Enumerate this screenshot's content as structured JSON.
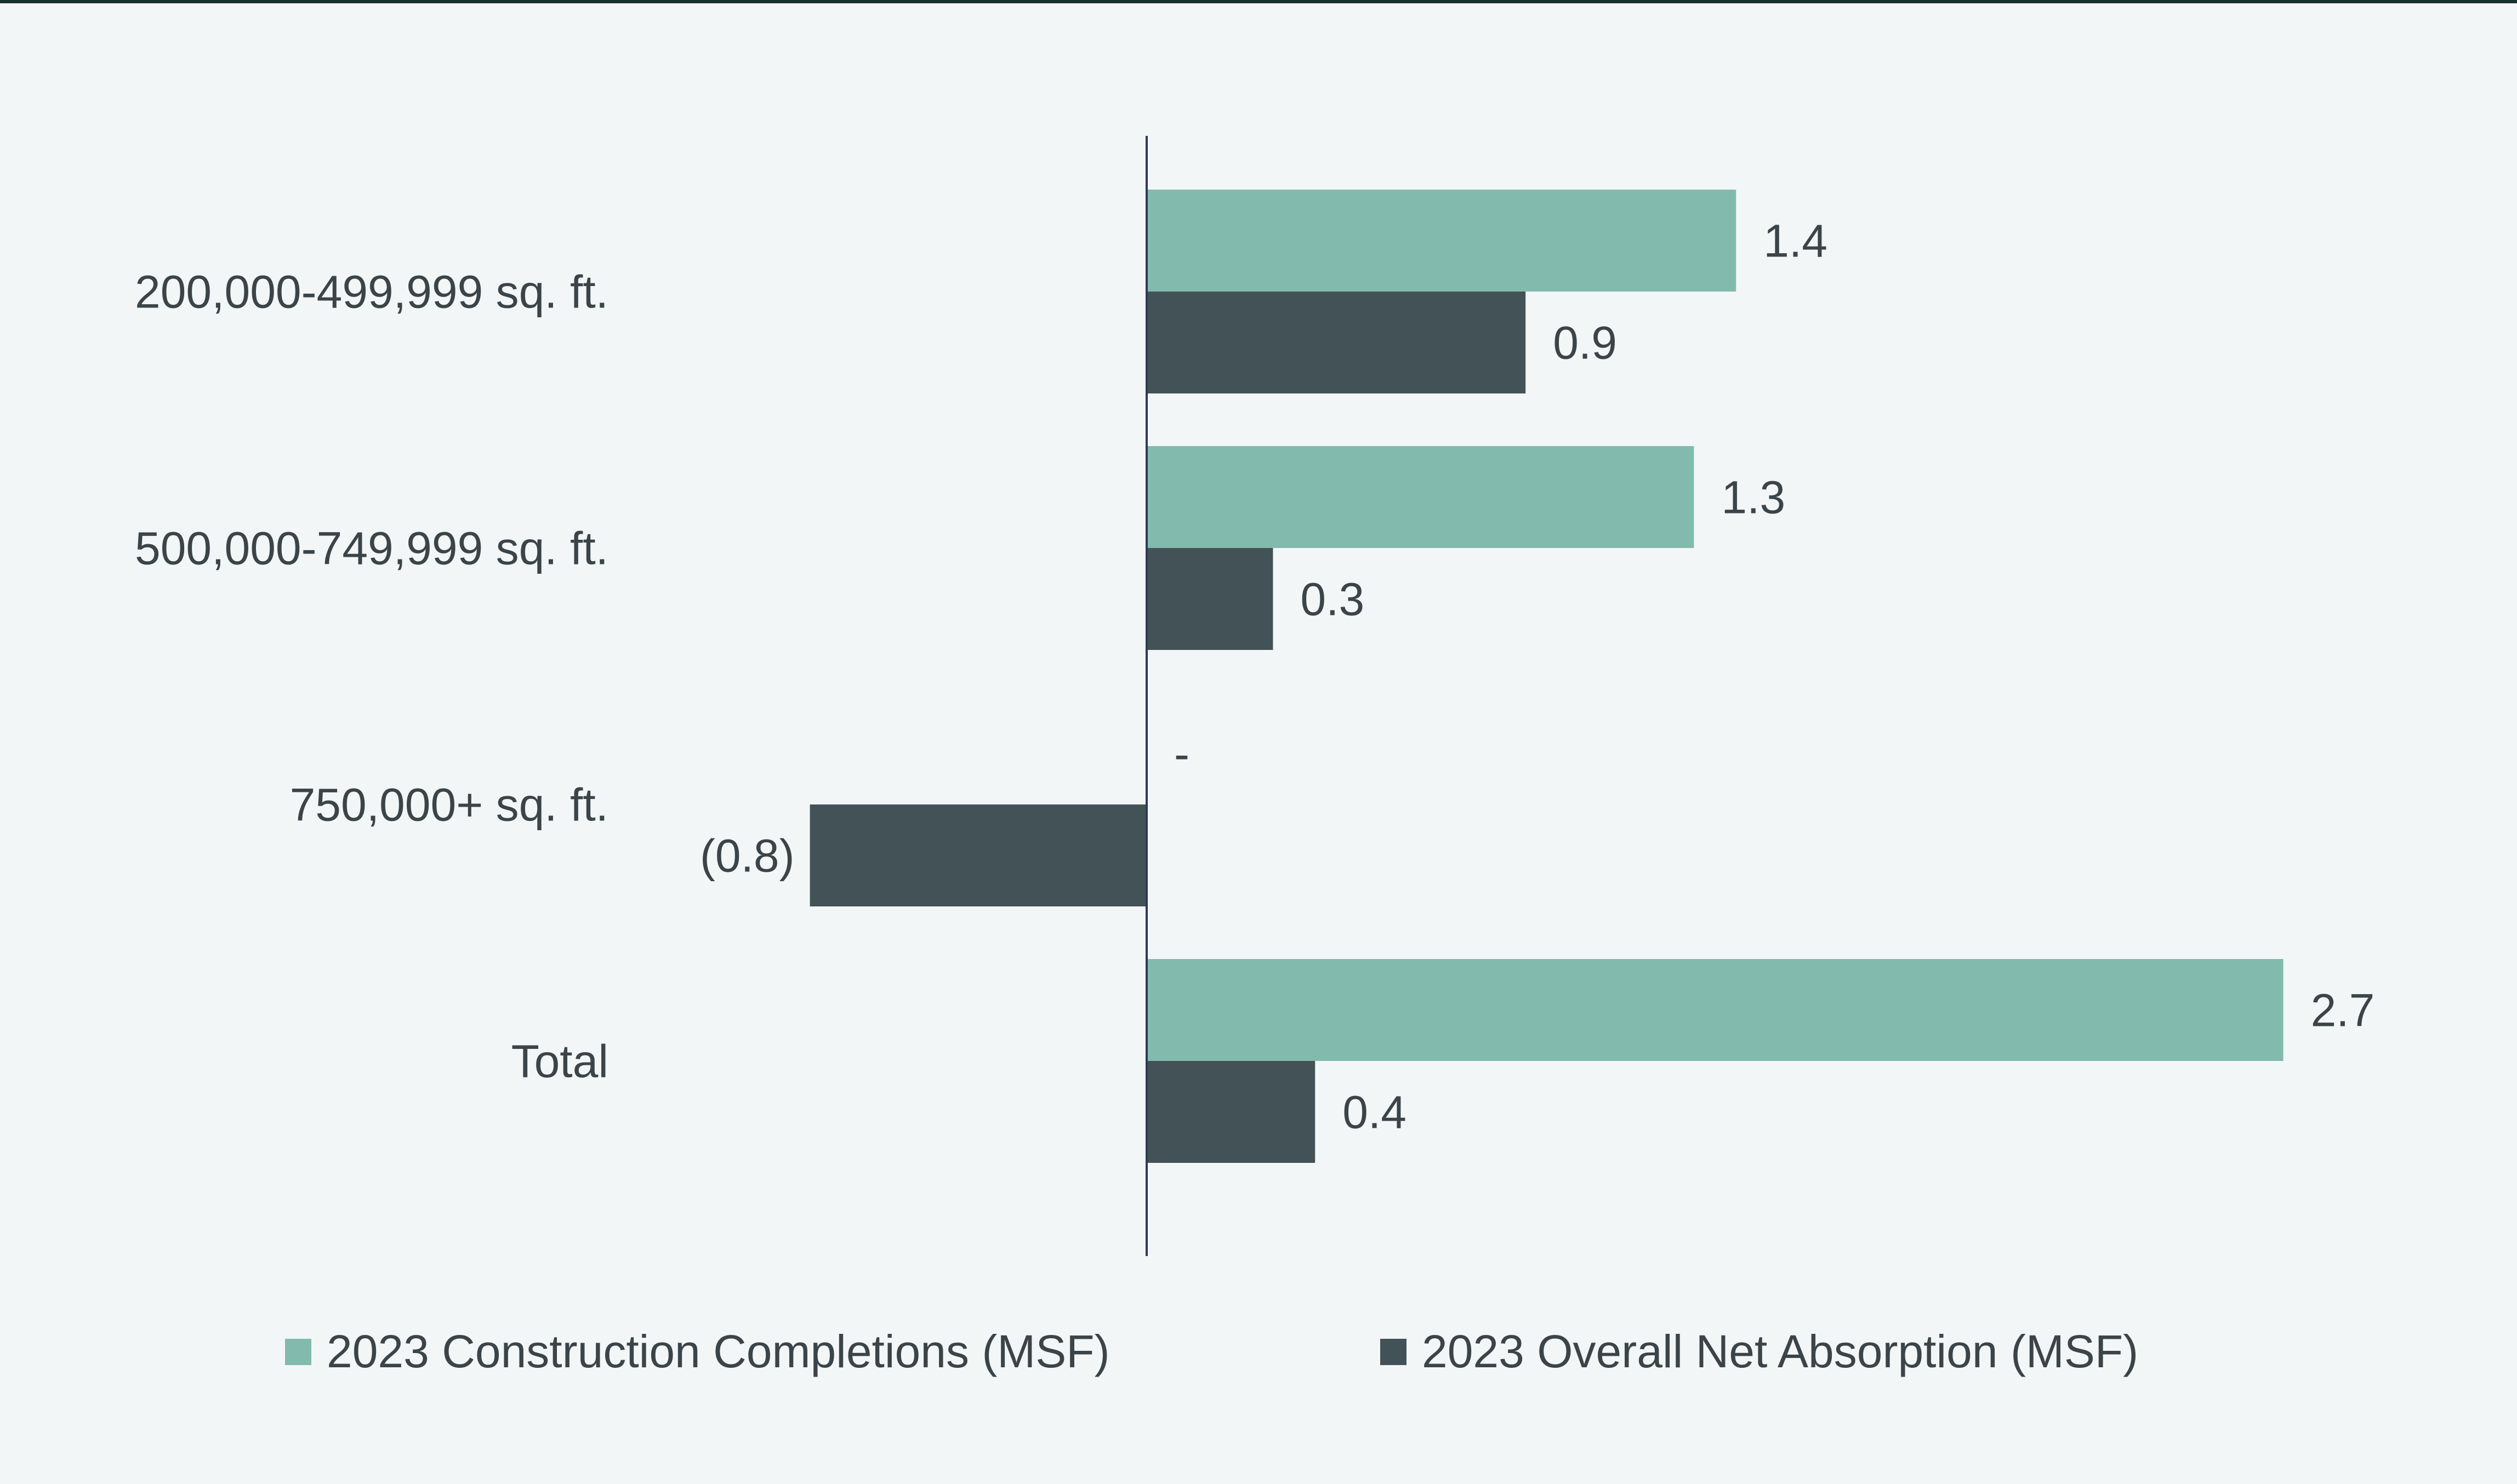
{
  "chart_data": {
    "type": "bar",
    "orientation": "horizontal",
    "title": "",
    "xlabel": "",
    "ylabel": "",
    "xlim": [
      -0.9,
      2.9
    ],
    "grid": false,
    "legend_position": "bottom",
    "categories": [
      "200,000-499,999 sq. ft.",
      "500,000-749,999 sq. ft.",
      "750,000+ sq. ft.",
      "Total"
    ],
    "series": [
      {
        "name": "2023 Construction Completions (MSF)",
        "color": "#82bbad",
        "values": [
          1.4,
          1.3,
          0,
          2.7
        ],
        "labels": [
          "1.4",
          "1.3",
          "-",
          "2.7"
        ]
      },
      {
        "name": "2023 Overall Net Absorption (MSF)",
        "color": "#435256",
        "values": [
          0.9,
          0.3,
          -0.8,
          0.4
        ],
        "labels": [
          "0.9",
          "0.3",
          "(0.8)",
          "0.4"
        ]
      }
    ],
    "colors": {
      "background": "#f2f6f7",
      "axis": "#2e3a55",
      "text": "#3b4448",
      "top_rule": "#17302d"
    }
  }
}
